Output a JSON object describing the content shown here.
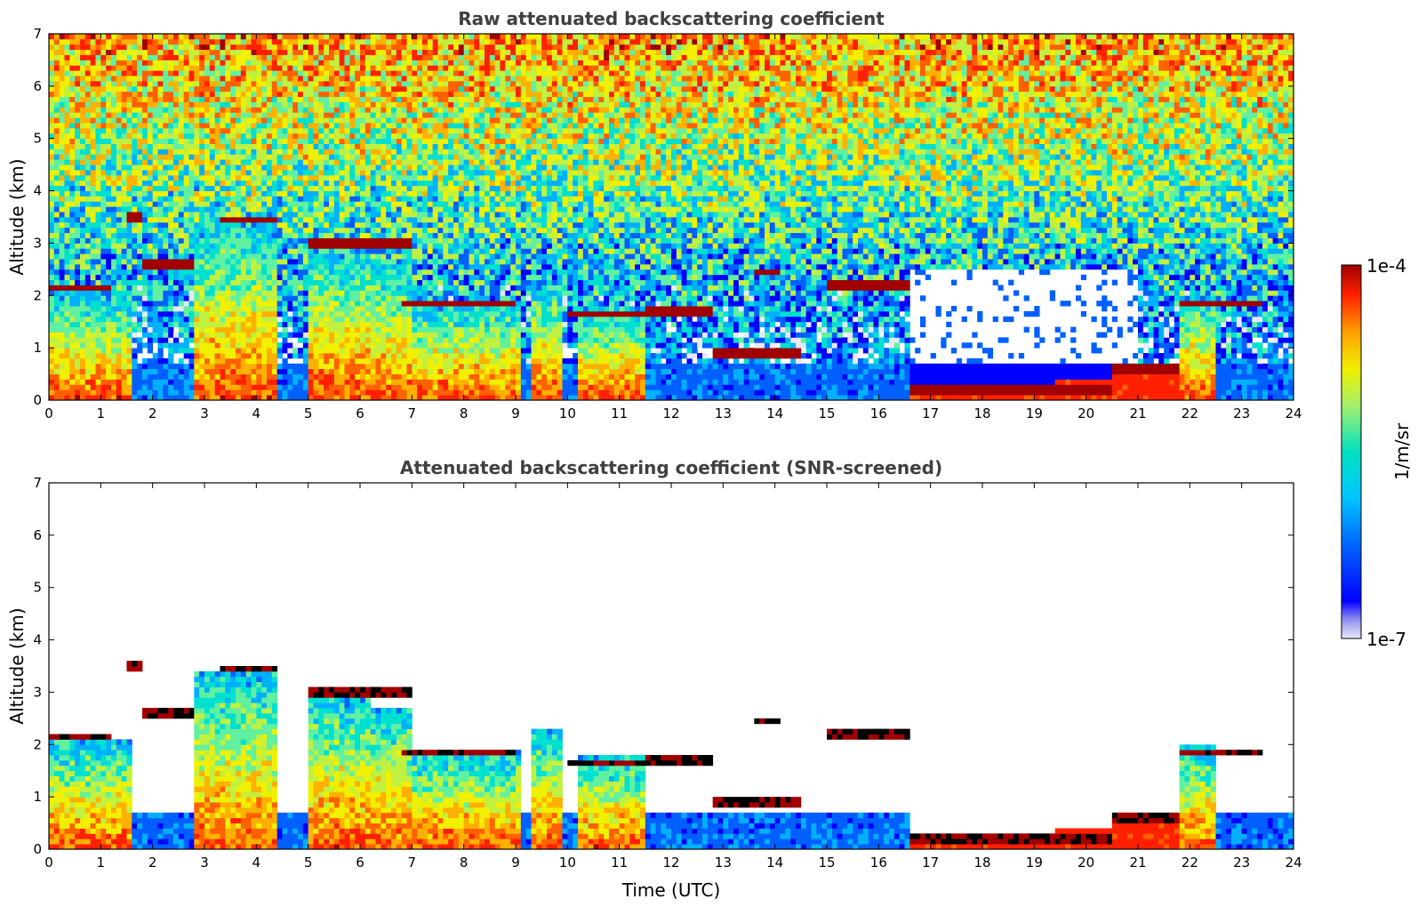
{
  "chart_data": [
    {
      "type": "heatmap",
      "title": "Raw attenuated backscattering coefficient",
      "xlabel": "",
      "ylabel": "Altitude (km)",
      "xlim": [
        0,
        24
      ],
      "ylim": [
        0,
        7
      ],
      "x_ticks": [
        0,
        1,
        2,
        3,
        4,
        5,
        6,
        7,
        8,
        9,
        10,
        11,
        12,
        13,
        14,
        15,
        16,
        17,
        18,
        19,
        20,
        21,
        22,
        23,
        24
      ],
      "y_ticks": [
        0,
        1,
        2,
        3,
        4,
        5,
        6,
        7
      ],
      "screened": false,
      "cloud_layers": [
        {
          "x": [
            0.0,
            1.2
          ],
          "y": 2.15
        },
        {
          "x": [
            1.5,
            1.8
          ],
          "y": 3.5
        },
        {
          "x": [
            1.8,
            2.8
          ],
          "y": 2.6
        },
        {
          "x": [
            3.3,
            4.4
          ],
          "y": 3.45
        },
        {
          "x": [
            5.0,
            7.0
          ],
          "y": 3.0
        },
        {
          "x": [
            6.8,
            9.0
          ],
          "y": 1.85
        },
        {
          "x": [
            10.0,
            11.5
          ],
          "y": 1.65
        },
        {
          "x": [
            11.5,
            12.8
          ],
          "y": 1.7
        },
        {
          "x": [
            12.8,
            14.5
          ],
          "y": 0.9
        },
        {
          "x": [
            13.6,
            14.1
          ],
          "y": 2.45
        },
        {
          "x": [
            15.0,
            16.6
          ],
          "y": 2.2
        },
        {
          "x": [
            16.6,
            20.5
          ],
          "y": 0.2
        },
        {
          "x": [
            20.5,
            21.8
          ],
          "y": 0.6
        },
        {
          "x": [
            21.8,
            23.4
          ],
          "y": 1.85
        }
      ],
      "boundary_layer_columns": [
        {
          "x": [
            0.0,
            1.6
          ],
          "top": 2.1
        },
        {
          "x": [
            2.8,
            4.4
          ],
          "top": 3.4
        },
        {
          "x": [
            5.0,
            6.2
          ],
          "top": 3.0
        },
        {
          "x": [
            6.2,
            7.0
          ],
          "top": 2.7
        },
        {
          "x": [
            7.0,
            9.1
          ],
          "top": 1.9
        },
        {
          "x": [
            9.3,
            9.9
          ],
          "top": 2.3
        },
        {
          "x": [
            10.2,
            11.5
          ],
          "top": 1.8
        },
        {
          "x": [
            21.8,
            22.5
          ],
          "top": 2.0
        }
      ],
      "clear_regions": [
        {
          "x": [
            16.6,
            21.0
          ],
          "y": [
            0.4,
            2.5
          ]
        }
      ]
    },
    {
      "type": "heatmap",
      "title": "Attenuated backscattering coefficient (SNR-screened)",
      "xlabel": "Time (UTC)",
      "ylabel": "Altitude (km)",
      "xlim": [
        0,
        24
      ],
      "ylim": [
        0,
        7
      ],
      "x_ticks": [
        0,
        1,
        2,
        3,
        4,
        5,
        6,
        7,
        8,
        9,
        10,
        11,
        12,
        13,
        14,
        15,
        16,
        17,
        18,
        19,
        20,
        21,
        22,
        23,
        24
      ],
      "y_ticks": [
        0,
        1,
        2,
        3,
        4,
        5,
        6,
        7
      ],
      "screened": true
    }
  ],
  "colorbar": {
    "label": "1/m/sr",
    "max_label": "1e-4",
    "min_label": "1e-7",
    "scale": "log",
    "range": [
      1e-07,
      0.0001
    ],
    "colormap": [
      "#e8e8f8",
      "#0000ff",
      "#00aaff",
      "#00e0d0",
      "#a0f070",
      "#f0f000",
      "#ffa000",
      "#ff3000",
      "#a00000"
    ]
  }
}
